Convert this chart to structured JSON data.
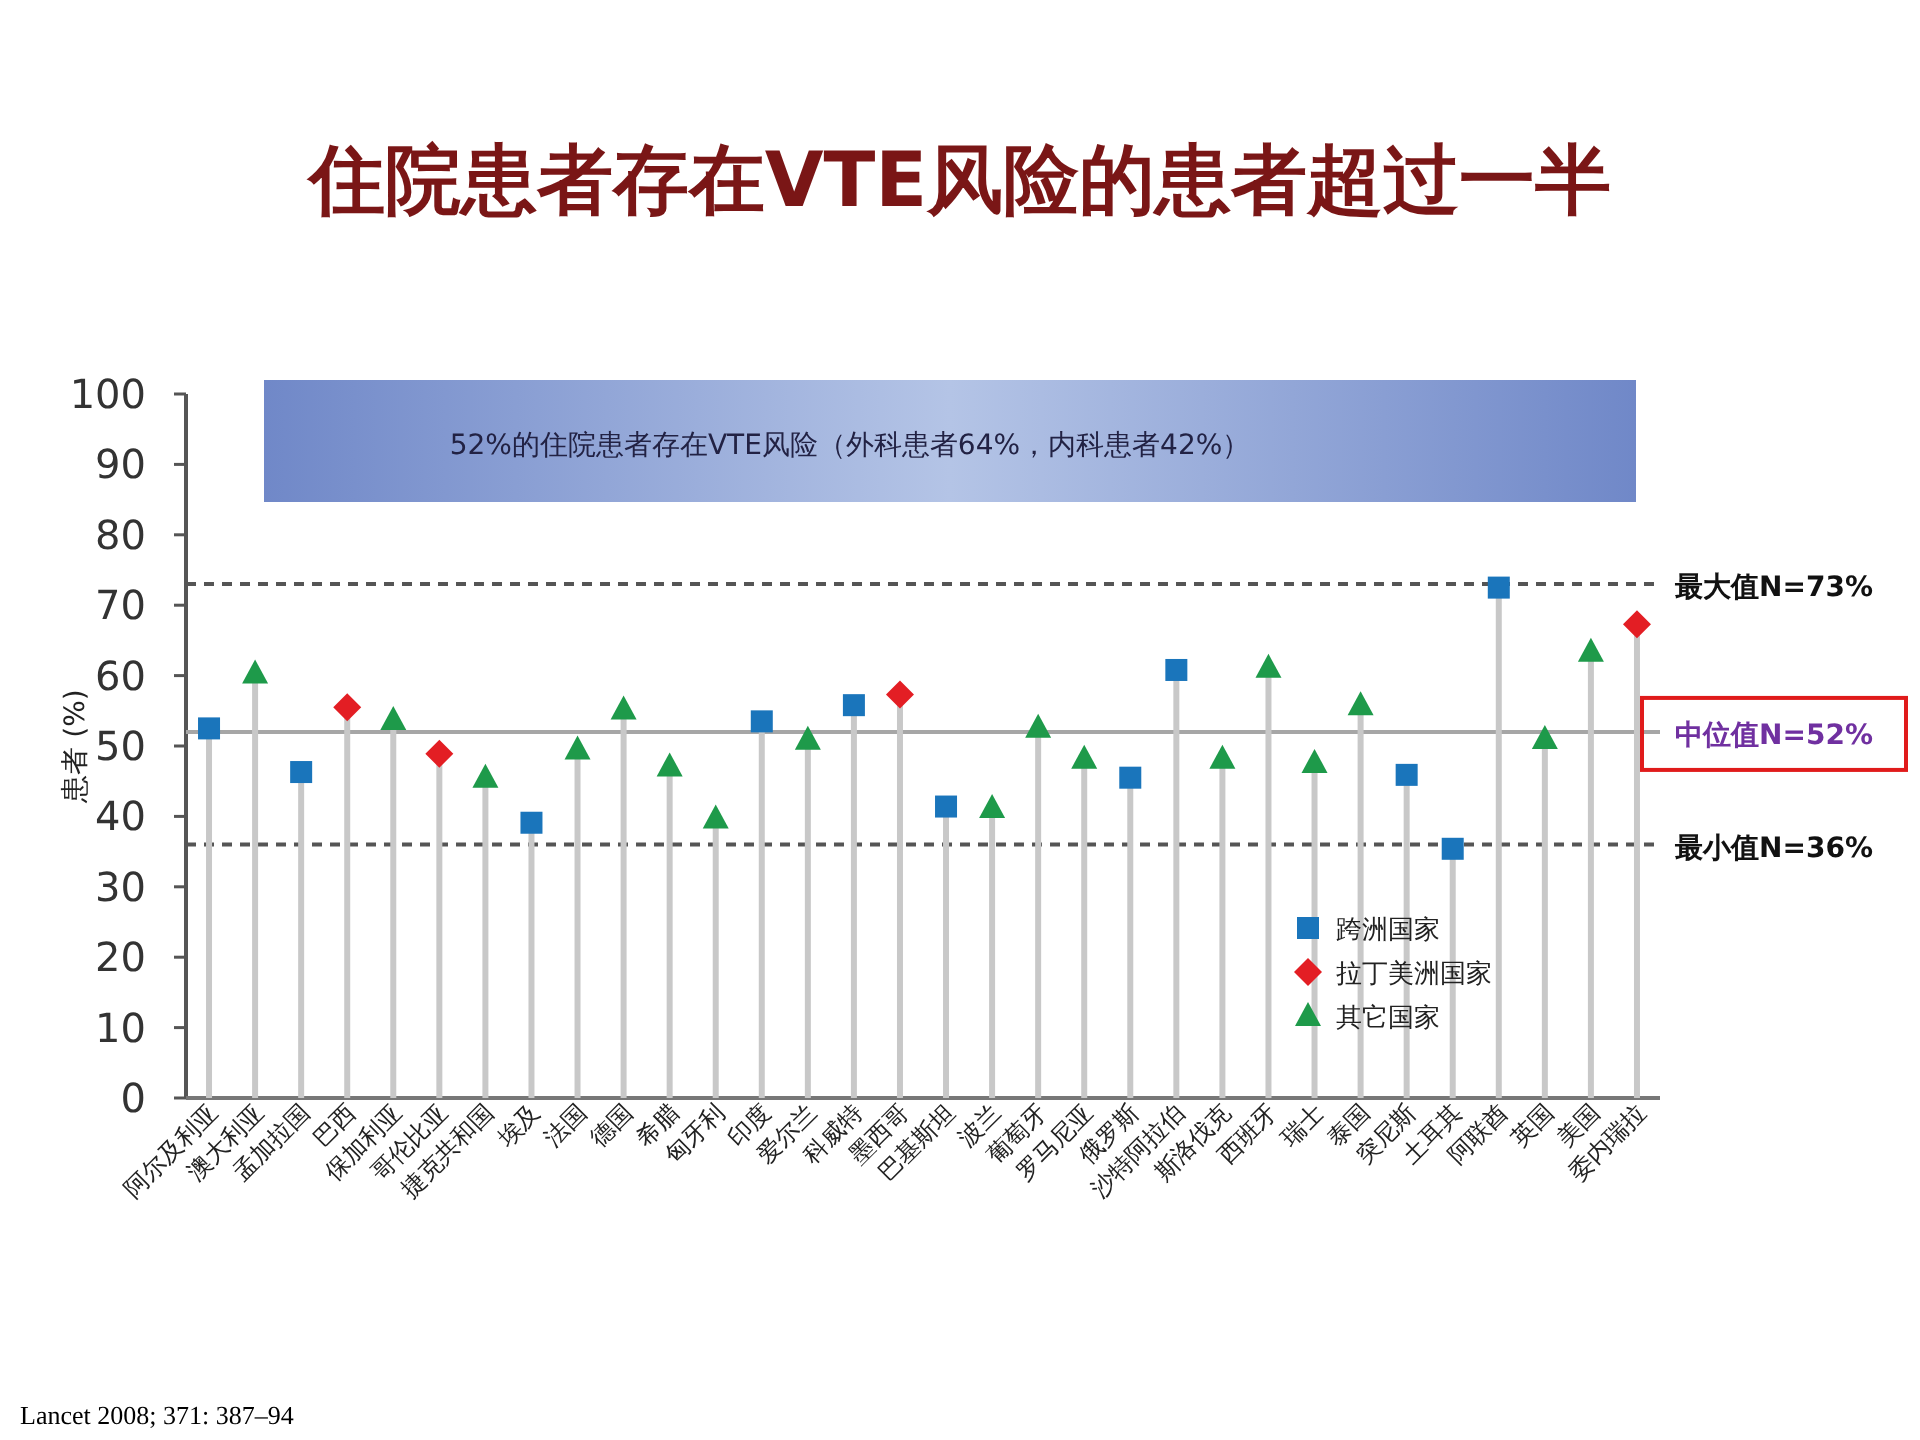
{
  "chart_data": {
    "type": "lollipop",
    "title": "住院患者存在VTE风险的患者超过一半",
    "ylabel": "患者 (%)",
    "categories": [
      "阿尔及利亚",
      "澳大利亚",
      "孟加拉国",
      "巴西",
      "保加利亚",
      "哥伦比亚",
      "捷克共和国",
      "埃及",
      "法国",
      "德国",
      "希腊",
      "匈牙利",
      "印度",
      "爱尔兰",
      "科威特",
      "墨西哥",
      "巴基斯坦",
      "波兰",
      "葡萄牙",
      "罗马尼亚",
      "俄罗斯",
      "沙特阿拉伯",
      "斯洛伐克",
      "西班牙",
      "瑞士",
      "泰国",
      "突尼斯",
      "土耳其",
      "阿联酋",
      "英国",
      "美国",
      "委内瑞拉"
    ],
    "series": [
      {
        "name": "跨洲国家",
        "color": "#1a75bb",
        "marker": "square",
        "values": [
          52.5,
          null,
          46.3,
          null,
          null,
          null,
          null,
          39.1,
          null,
          null,
          null,
          null,
          53.5,
          null,
          55.8,
          null,
          41.4,
          null,
          null,
          null,
          45.5,
          60.8,
          null,
          null,
          null,
          null,
          45.9,
          35.4,
          72.5,
          null,
          null,
          null
        ]
      },
      {
        "name": "拉丁美洲国家",
        "color": "#e31e24",
        "marker": "diamond",
        "values": [
          null,
          null,
          null,
          55.5,
          null,
          48.9,
          null,
          null,
          null,
          null,
          null,
          null,
          null,
          null,
          null,
          57.3,
          null,
          null,
          null,
          null,
          null,
          null,
          null,
          null,
          null,
          null,
          null,
          null,
          null,
          null,
          null,
          67.3
        ]
      },
      {
        "name": "其它国家",
        "color": "#1e9a4a",
        "marker": "triangle",
        "values": [
          null,
          60.3,
          null,
          null,
          53.7,
          null,
          45.5,
          null,
          49.5,
          55.2,
          47.1,
          39.7,
          null,
          50.9,
          null,
          null,
          null,
          41.2,
          52.6,
          48.2,
          null,
          null,
          48.2,
          61.1,
          47.6,
          55.8,
          null,
          null,
          null,
          51,
          63.4,
          null
        ]
      }
    ],
    "ylim": [
      0,
      100
    ],
    "yticks": [
      0,
      10,
      20,
      30,
      40,
      50,
      60,
      70,
      80,
      90,
      100
    ],
    "ref_lines": [
      {
        "axis": "y",
        "value": 73,
        "label": "最大值N=73%",
        "color": "#555555",
        "line_style": "dashed"
      },
      {
        "axis": "y",
        "value": 52,
        "label": "中位值N=52%",
        "color": "#a6a6a6",
        "line_style": "solid"
      },
      {
        "axis": "y",
        "value": 36,
        "label": "最小值N=36%",
        "color": "#555555",
        "line_style": "dashed"
      }
    ],
    "annotations": [
      "52%的住院患者存在VTE风险（外科患者64%，内科患者42%）",
      "Lancet 2008; 371: 387–94"
    ],
    "legend": "bottom right"
  }
}
